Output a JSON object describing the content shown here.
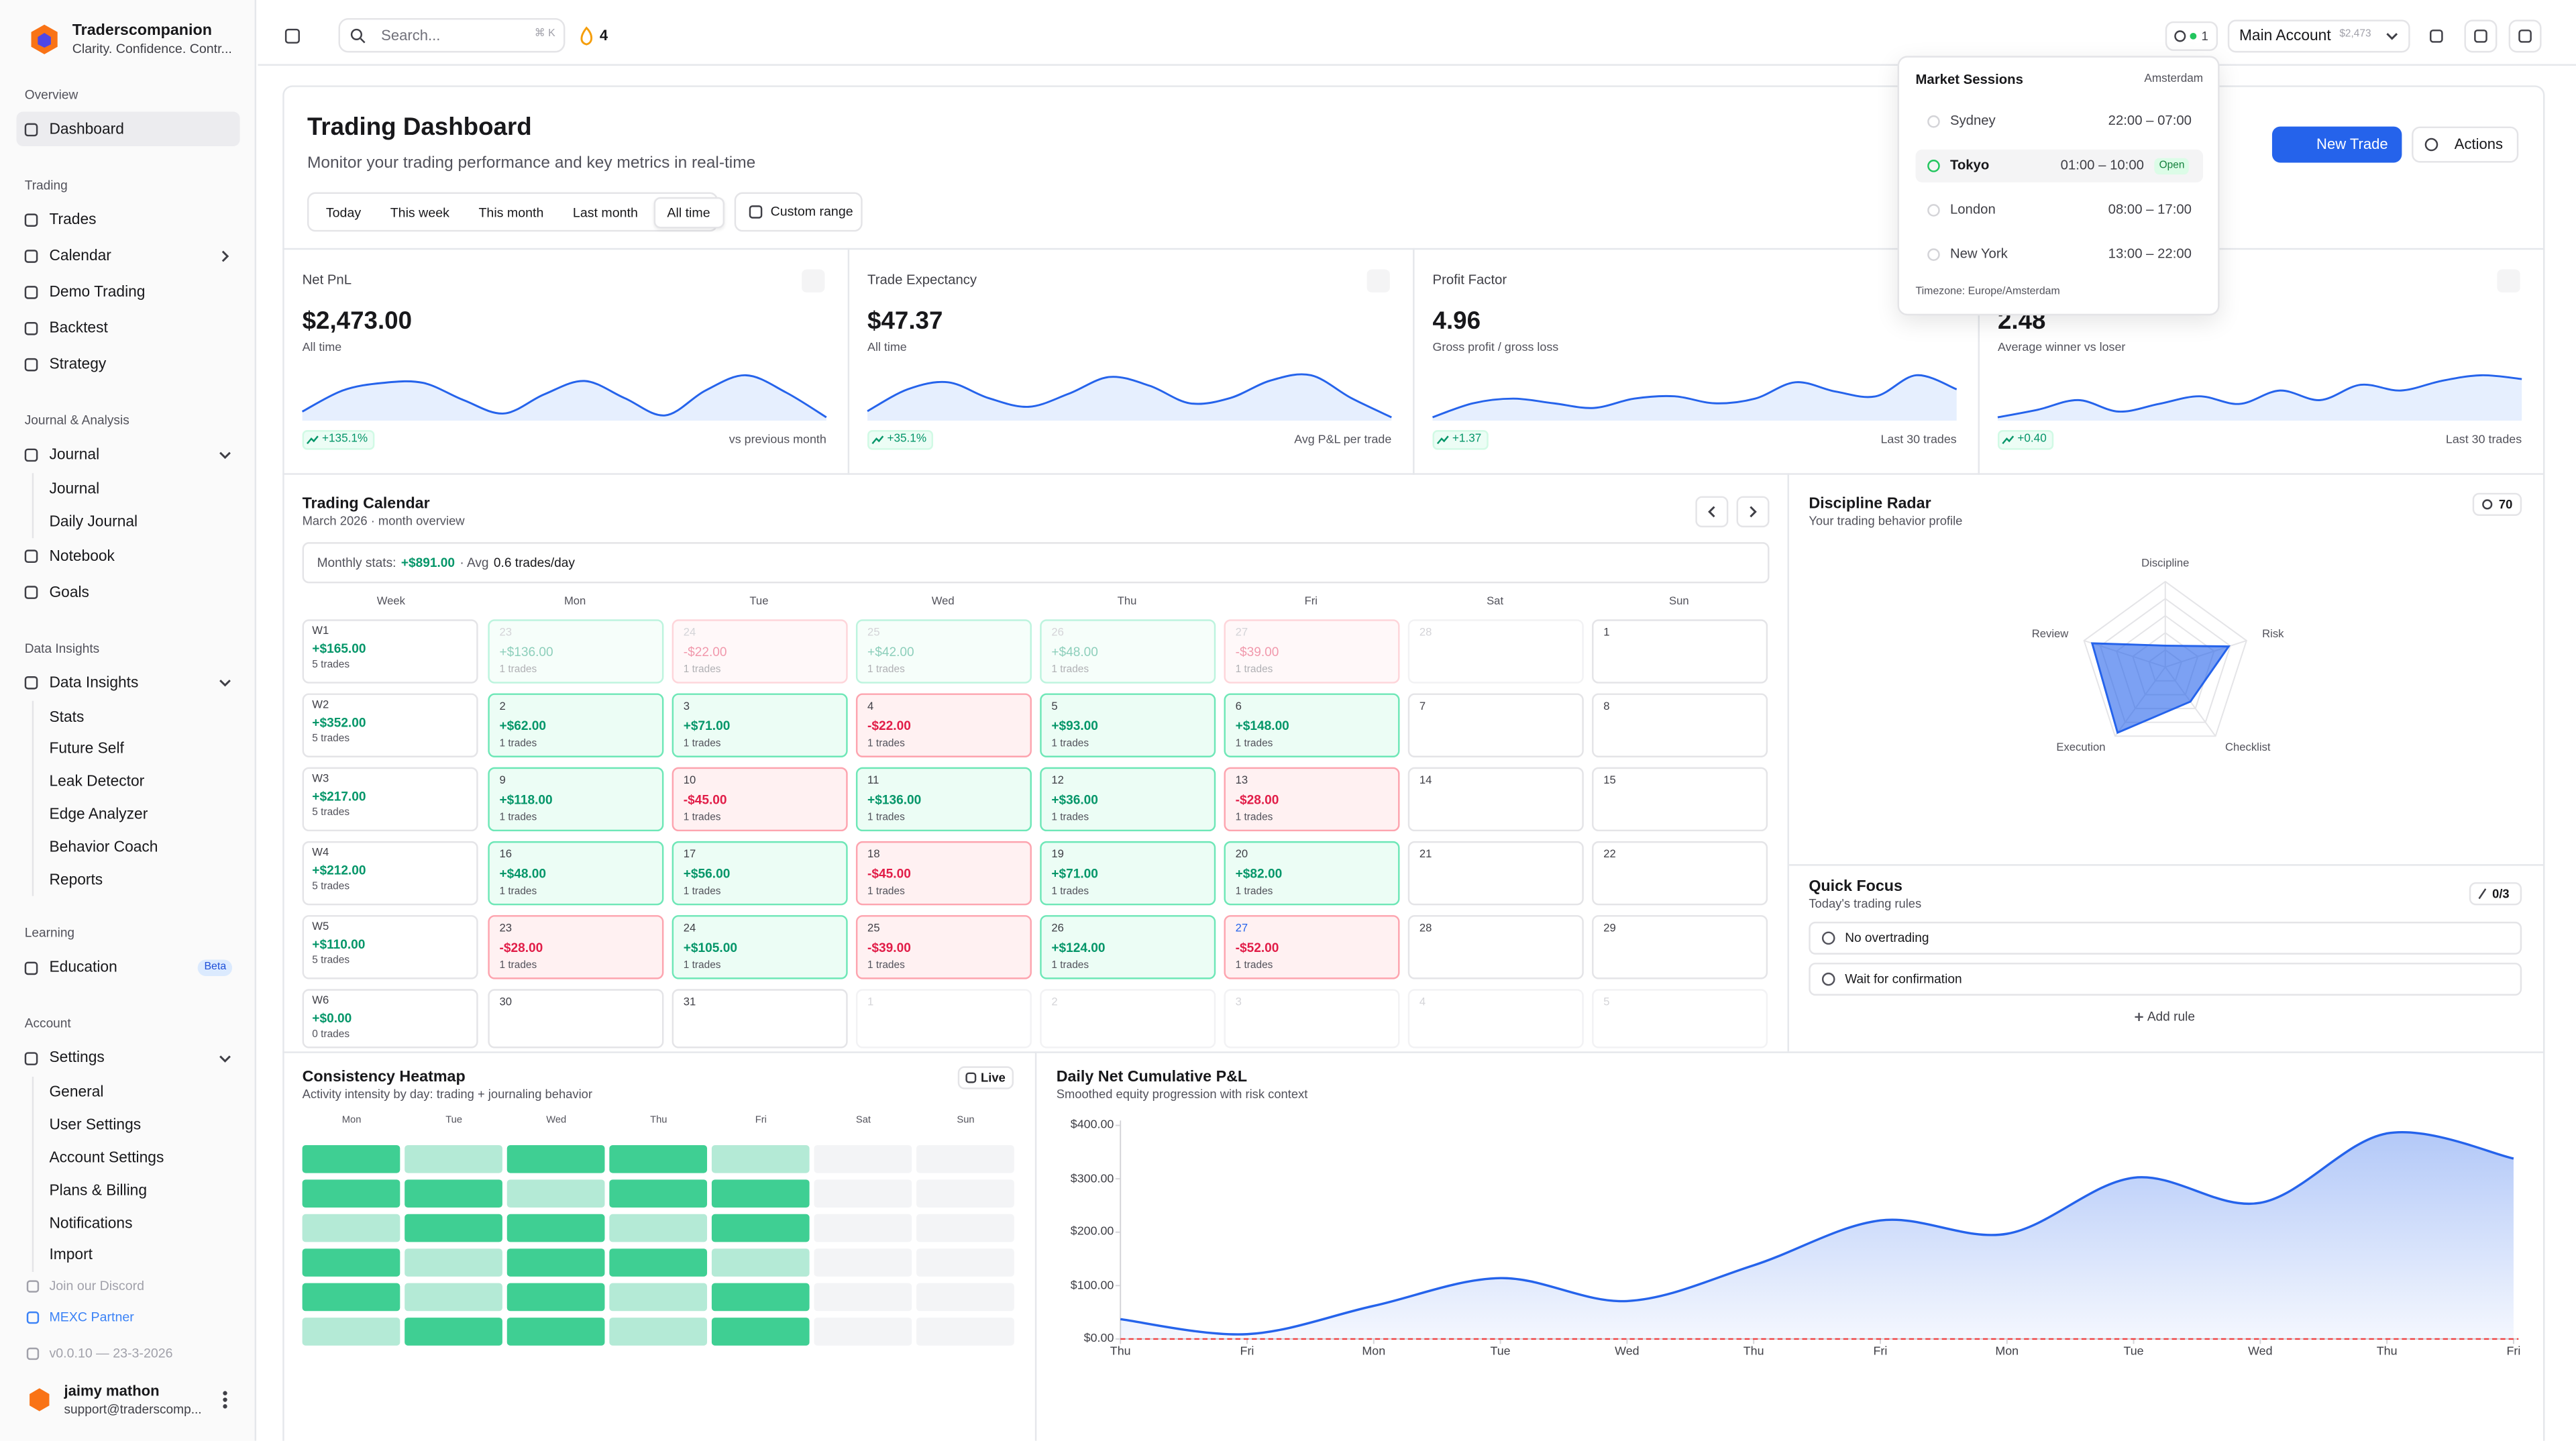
{
  "sidebar": {
    "brand": {
      "name": "Traderscompanion",
      "tagline": "Clarity. Confidence. Contr..."
    },
    "sections": [
      {
        "title": "Overview",
        "items": [
          {
            "label": "Dashboard",
            "active": true
          }
        ]
      },
      {
        "title": "Trading",
        "items": [
          {
            "label": "Trades"
          },
          {
            "label": "Calendar",
            "chevron": "right"
          },
          {
            "label": "Demo Trading"
          },
          {
            "label": "Backtest"
          },
          {
            "label": "Strategy"
          }
        ]
      },
      {
        "title": "Journal & Analysis",
        "items": [
          {
            "label": "Journal",
            "chevron": "down",
            "children": [
              "Journal",
              "Daily Journal"
            ]
          },
          {
            "label": "Notebook"
          },
          {
            "label": "Goals"
          }
        ]
      },
      {
        "title": "Data Insights",
        "items": [
          {
            "label": "Data Insights",
            "chevron": "down",
            "children": [
              "Stats",
              "Future Self",
              "Leak Detector",
              "Edge Analyzer",
              "Behavior Coach",
              "Reports"
            ]
          }
        ]
      },
      {
        "title": "Learning",
        "items": [
          {
            "label": "Education",
            "badge": "Beta"
          }
        ]
      },
      {
        "title": "Account",
        "items": [
          {
            "label": "Settings",
            "chevron": "down",
            "children": [
              "General",
              "User Settings",
              "Account Settings",
              "Plans & Billing",
              "Notifications",
              "Import"
            ]
          }
        ]
      }
    ],
    "footer_links": [
      {
        "label": "Join our Discord",
        "color": "#a1a1aa"
      },
      {
        "label": "MEXC Partner",
        "color": "#3b82f6"
      },
      {
        "label": "v0.0.10 — 23-3-2026",
        "color": "#a1a1aa"
      }
    ],
    "user": {
      "name": "jaimy mathon",
      "email": "support@traderscomp..."
    }
  },
  "header": {
    "search_placeholder": "Search...",
    "shortcut": "⌘ K",
    "streak": 4,
    "sessions_open": 1,
    "account": "Main Account",
    "balance": "$2,473"
  },
  "market_sessions": {
    "title": "Market Sessions",
    "location": "Amsterdam",
    "sessions": [
      {
        "name": "Sydney",
        "hours": "22:00 – 07:00"
      },
      {
        "name": "Tokyo",
        "hours": "01:00 – 10:00",
        "status": "Open"
      },
      {
        "name": "London",
        "hours": "08:00 – 17:00"
      },
      {
        "name": "New York",
        "hours": "13:00 – 22:00"
      }
    ],
    "timezone": "Timezone: Europe/Amsterdam"
  },
  "dashboard": {
    "title": "Trading Dashboard",
    "subtitle": "Monitor your trading performance and key metrics in real-time",
    "ranges": [
      "Today",
      "This week",
      "This month",
      "Last month",
      "All time"
    ],
    "active_range": 4,
    "custom_range": "Custom range",
    "new_trade": "New Trade",
    "actions": "Actions"
  },
  "stats": [
    {
      "label": "Net PnL",
      "value": "$2,473.00",
      "sub": "All time",
      "change": "+135.1%",
      "foot": "vs previous month",
      "spark": [
        20,
        42,
        50,
        50,
        32,
        18,
        38,
        52,
        34,
        16,
        42,
        58,
        40,
        14
      ]
    },
    {
      "label": "Trade Expectancy",
      "value": "$47.37",
      "sub": "All time",
      "change": "+35.1%",
      "foot": "Avg P&L per trade",
      "spark": [
        15,
        40,
        48,
        30,
        20,
        35,
        54,
        44,
        24,
        30,
        50,
        56,
        30,
        8
      ]
    },
    {
      "label": "Profit Factor",
      "value": "4.96",
      "sub": "Gross profit / gross loss",
      "change": "+1.37",
      "foot": "Last 30 trades",
      "spark": [
        22,
        34,
        38,
        34,
        30,
        38,
        40,
        34,
        38,
        52,
        44,
        40,
        58,
        46
      ]
    },
    {
      "value": "2.48",
      "sub": "Average winner vs loser",
      "change": "+0.40",
      "foot": "Last 30 trades",
      "spark": [
        16,
        24,
        34,
        22,
        30,
        38,
        30,
        44,
        34,
        50,
        44,
        54,
        60,
        56
      ]
    }
  ],
  "calendar": {
    "title": "Trading Calendar",
    "subtitle": "March 2026 · month overview",
    "stats_label": "Monthly stats:",
    "month_total": "+$891.00",
    "avg_label": "· Avg",
    "avg_value": "0.6 trades/day",
    "week_header": "Week",
    "weekdays": [
      "Mon",
      "Tue",
      "Wed",
      "Thu",
      "Fri",
      "Sat",
      "Sun"
    ],
    "rows": [
      {
        "week": "W1",
        "total": "+$165.00",
        "trades": "5 trades",
        "days": [
          {
            "day": 23,
            "pnl": "+$136.00",
            "trades": "1 trades",
            "outside": true
          },
          {
            "day": 24,
            "pnl": "-$22.00",
            "trades": "1 trades",
            "outside": true
          },
          {
            "day": 25,
            "pnl": "+$42.00",
            "trades": "1 trades",
            "outside": true
          },
          {
            "day": 26,
            "pnl": "+$48.00",
            "trades": "1 trades",
            "outside": true
          },
          {
            "day": 27,
            "pnl": "-$39.00",
            "trades": "1 trades",
            "outside": true
          },
          {
            "day": 28,
            "outside": true
          },
          {
            "day": 1
          }
        ]
      },
      {
        "week": "W2",
        "total": "+$352.00",
        "trades": "5 trades",
        "days": [
          {
            "day": 2,
            "pnl": "+$62.00",
            "trades": "1 trades"
          },
          {
            "day": 3,
            "pnl": "+$71.00",
            "trades": "1 trades"
          },
          {
            "day": 4,
            "pnl": "-$22.00",
            "trades": "1 trades"
          },
          {
            "day": 5,
            "pnl": "+$93.00",
            "trades": "1 trades"
          },
          {
            "day": 6,
            "pnl": "+$148.00",
            "trades": "1 trades"
          },
          {
            "day": 7
          },
          {
            "day": 8
          }
        ]
      },
      {
        "week": "W3",
        "total": "+$217.00",
        "trades": "5 trades",
        "days": [
          {
            "day": 9,
            "pnl": "+$118.00",
            "trades": "1 trades"
          },
          {
            "day": 10,
            "pnl": "-$45.00",
            "trades": "1 trades"
          },
          {
            "day": 11,
            "pnl": "+$136.00",
            "trades": "1 trades"
          },
          {
            "day": 12,
            "pnl": "+$36.00",
            "trades": "1 trades"
          },
          {
            "day": 13,
            "pnl": "-$28.00",
            "trades": "1 trades"
          },
          {
            "day": 14
          },
          {
            "day": 15
          }
        ]
      },
      {
        "week": "W4",
        "total": "+$212.00",
        "trades": "5 trades",
        "days": [
          {
            "day": 16,
            "pnl": "+$48.00",
            "trades": "1 trades"
          },
          {
            "day": 17,
            "pnl": "+$56.00",
            "trades": "1 trades"
          },
          {
            "day": 18,
            "pnl": "-$45.00",
            "trades": "1 trades"
          },
          {
            "day": 19,
            "pnl": "+$71.00",
            "trades": "1 trades"
          },
          {
            "day": 20,
            "pnl": "+$82.00",
            "trades": "1 trades"
          },
          {
            "day": 21
          },
          {
            "day": 22
          }
        ]
      },
      {
        "week": "W5",
        "total": "+$110.00",
        "trades": "5 trades",
        "days": [
          {
            "day": 23,
            "pnl": "-$28.00",
            "trades": "1 trades"
          },
          {
            "day": 24,
            "pnl": "+$105.00",
            "trades": "1 trades"
          },
          {
            "day": 25,
            "pnl": "-$39.00",
            "trades": "1 trades"
          },
          {
            "day": 26,
            "pnl": "+$124.00",
            "trades": "1 trades"
          },
          {
            "day": 27,
            "pnl": "-$52.00",
            "trades": "1 trades",
            "today": true
          },
          {
            "day": 28
          },
          {
            "day": 29
          }
        ]
      },
      {
        "week": "W6",
        "total": "+$0.00",
        "trades": "0 trades",
        "days": [
          {
            "day": 30
          },
          {
            "day": 31
          },
          {
            "day": 1,
            "outside": true
          },
          {
            "day": 2,
            "outside": true
          },
          {
            "day": 3,
            "outside": true
          },
          {
            "day": 4,
            "outside": true
          },
          {
            "day": 5,
            "outside": true
          }
        ]
      }
    ]
  },
  "radar": {
    "title": "Discipline Radar",
    "subtitle": "Your trading behavior profile",
    "score": 70,
    "axes": [
      "Discipline",
      "Risk",
      "Checklist",
      "Execution",
      "Review"
    ],
    "values": [
      25,
      78,
      50,
      95,
      90
    ],
    "rlim": [
      0,
      100
    ],
    "color": "#2563eb"
  },
  "quick_focus": {
    "title": "Quick Focus",
    "subtitle": "Today's trading rules",
    "count": "0/3",
    "rules": [
      "No overtrading",
      "Wait for confirmation"
    ],
    "add": "Add rule"
  },
  "heatmap": {
    "title": "Consistency Heatmap",
    "subtitle": "Activity intensity by day: trading + journaling behavior",
    "badge": "Live",
    "days": [
      "Mon",
      "Tue",
      "Wed",
      "Thu",
      "Fri",
      "Sat",
      "Sun"
    ],
    "colors": [
      "#f3f4f6",
      "#b4ead6",
      "#3fcf93"
    ],
    "rows": [
      [
        2,
        1,
        2,
        2,
        1,
        0,
        0
      ],
      [
        2,
        2,
        1,
        2,
        2,
        0,
        0
      ],
      [
        1,
        2,
        2,
        1,
        2,
        0,
        0
      ],
      [
        2,
        1,
        2,
        2,
        1,
        0,
        0
      ],
      [
        2,
        1,
        2,
        1,
        2,
        0,
        0
      ],
      [
        1,
        2,
        2,
        1,
        2,
        0,
        0
      ]
    ]
  },
  "pnl_chart": {
    "type": "area",
    "title": "Daily Net Cumulative P&L",
    "subtitle": "Smoothed equity progression with risk context",
    "x": [
      "Thu",
      "Fri",
      "Mon",
      "Tue",
      "Wed",
      "Thu",
      "Fri",
      "Mon",
      "Tue",
      "Wed",
      "Thu",
      "Fri"
    ],
    "values": [
      37,
      9,
      62,
      114,
      71,
      138,
      222,
      197,
      302,
      255,
      385,
      338
    ],
    "ylim": [
      0,
      400
    ],
    "yticks": [
      {
        "value": 0,
        "label": "$0.00"
      },
      {
        "value": 100,
        "label": "$100.00"
      },
      {
        "value": 200,
        "label": "$200.00"
      },
      {
        "value": 300,
        "label": "$300.00"
      },
      {
        "value": 400,
        "label": "$400.00"
      }
    ],
    "color": "#2563eb",
    "zero_line": true
  }
}
